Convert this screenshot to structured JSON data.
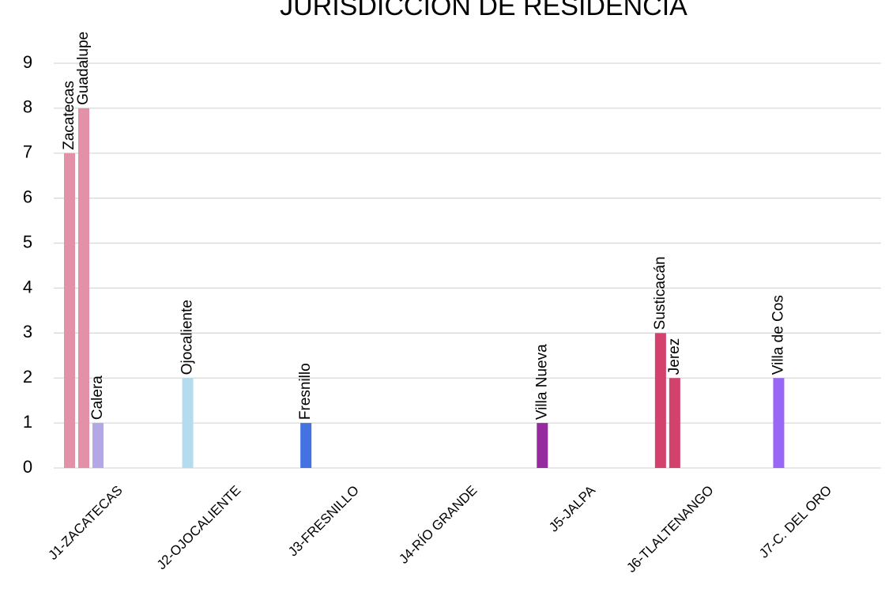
{
  "chart_data": {
    "type": "bar",
    "title": "JURISDICCIÓN DE RESIDENCIA",
    "ylim": [
      0,
      9
    ],
    "yticks": [
      0,
      1,
      2,
      3,
      4,
      5,
      6,
      7,
      8,
      9
    ],
    "grid": true,
    "groups": [
      {
        "category": "J1-ZACATECAS",
        "bars": [
          {
            "name": "Zacatecas",
            "value": 7,
            "color": "#e391a8"
          },
          {
            "name": "Guadalupe",
            "value": 8,
            "color": "#e391a8"
          },
          {
            "name": "Calera",
            "value": 1,
            "color": "#b4a7e6"
          }
        ]
      },
      {
        "category": "J2-OJOCALIENTE",
        "bars": [
          {
            "name": "Ojocaliente",
            "value": 2,
            "color": "#b4dcee"
          }
        ]
      },
      {
        "category": "J3-FRESNILLO",
        "bars": [
          {
            "name": "Fresnillo",
            "value": 1,
            "color": "#4472e0"
          }
        ]
      },
      {
        "category": "J4-RÍO GRANDE",
        "bars": []
      },
      {
        "category": "J5-JALPA",
        "bars": [
          {
            "name": "Villa Nueva",
            "value": 1,
            "color": "#952b9c"
          }
        ]
      },
      {
        "category": "J6-TLALTENANGO",
        "bars": [
          {
            "name": "Susticacán",
            "value": 3,
            "color": "#d2426c"
          },
          {
            "name": "Jerez",
            "value": 2,
            "color": "#d2426c"
          }
        ]
      },
      {
        "category": "J7-C. DEL ORO",
        "bars": [
          {
            "name": "Villa de Cos",
            "value": 2,
            "color": "#9966f5"
          }
        ]
      }
    ]
  }
}
